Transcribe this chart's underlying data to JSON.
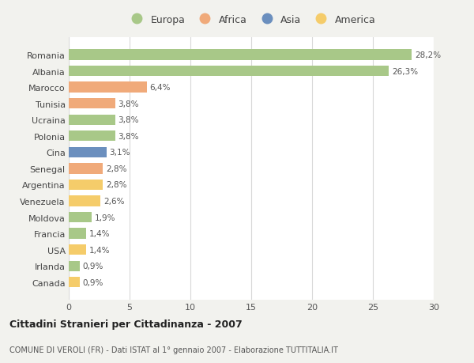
{
  "countries": [
    "Romania",
    "Albania",
    "Marocco",
    "Tunisia",
    "Ucraina",
    "Polonia",
    "Cina",
    "Senegal",
    "Argentina",
    "Venezuela",
    "Moldova",
    "Francia",
    "USA",
    "Irlanda",
    "Canada"
  ],
  "values": [
    28.2,
    26.3,
    6.4,
    3.8,
    3.8,
    3.8,
    3.1,
    2.8,
    2.8,
    2.6,
    1.9,
    1.4,
    1.4,
    0.9,
    0.9
  ],
  "labels": [
    "28,2%",
    "26,3%",
    "6,4%",
    "3,8%",
    "3,8%",
    "3,8%",
    "3,1%",
    "2,8%",
    "2,8%",
    "2,6%",
    "1,9%",
    "1,4%",
    "1,4%",
    "0,9%",
    "0,9%"
  ],
  "continents": [
    "Europa",
    "Europa",
    "Africa",
    "Africa",
    "Europa",
    "Europa",
    "Asia",
    "Africa",
    "America",
    "America",
    "Europa",
    "Europa",
    "America",
    "Europa",
    "America"
  ],
  "colors": {
    "Europa": "#a8c888",
    "Africa": "#f0aa7a",
    "Asia": "#6b8fbe",
    "America": "#f5cc6a"
  },
  "title": "Cittadini Stranieri per Cittadinanza - 2007",
  "subtitle": "COMUNE DI VEROLI (FR) - Dati ISTAT al 1° gennaio 2007 - Elaborazione TUTTITALIA.IT",
  "xlim": [
    0,
    30
  ],
  "xticks": [
    0,
    5,
    10,
    15,
    20,
    25,
    30
  ],
  "background_color": "#f2f2ee",
  "plot_bg_color": "#ffffff",
  "grid_color": "#d8d8d8",
  "label_color": "#555555",
  "ytick_color": "#444444"
}
